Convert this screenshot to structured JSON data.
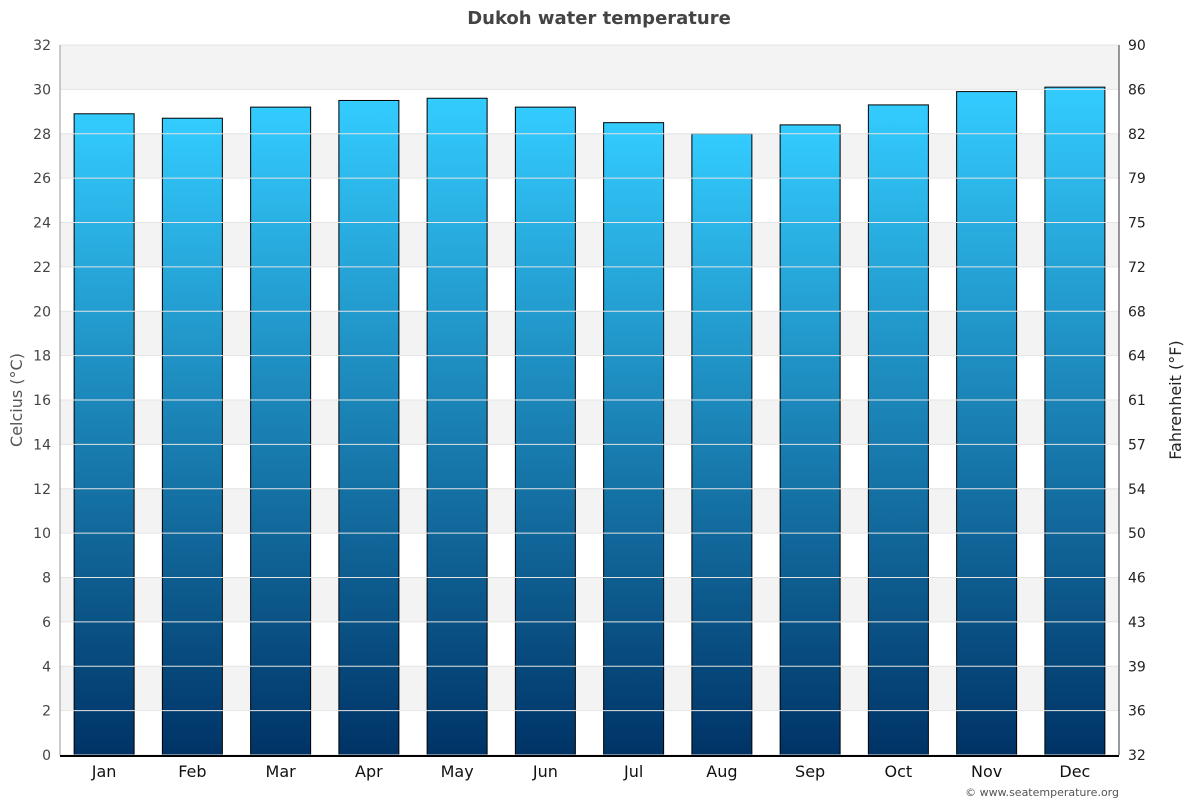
{
  "chart_data": {
    "type": "bar",
    "title": "Dukoh water temperature",
    "categories": [
      "Jan",
      "Feb",
      "Mar",
      "Apr",
      "May",
      "Jun",
      "Jul",
      "Aug",
      "Sep",
      "Oct",
      "Nov",
      "Dec"
    ],
    "values": [
      28.9,
      28.7,
      29.2,
      29.5,
      29.6,
      29.2,
      28.5,
      28.0,
      28.4,
      29.3,
      29.9,
      30.1
    ],
    "ylabel": "Celcius (°C)",
    "y2label": "Fahrenheit (°F)",
    "ylim": [
      0,
      32
    ],
    "yticks": [
      0,
      2,
      4,
      6,
      8,
      10,
      12,
      14,
      16,
      18,
      20,
      22,
      24,
      26,
      28,
      30,
      32
    ],
    "y2ticks": [
      "32",
      "36",
      "39",
      "43",
      "46",
      "50",
      "54",
      "57",
      "61",
      "64",
      "68",
      "72",
      "75",
      "79",
      "82",
      "86",
      "90"
    ],
    "grid": true,
    "colors": {
      "bar_top": "#33ccff",
      "bar_bottom": "#003366",
      "band": "#f3f3f3"
    }
  },
  "credit": "© www.seatemperature.org"
}
